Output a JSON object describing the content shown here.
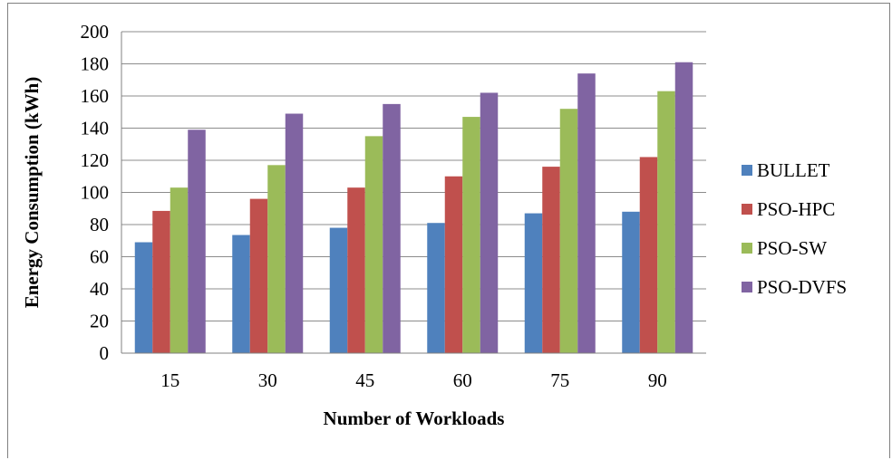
{
  "chart_data": {
    "type": "bar",
    "title": "",
    "xlabel": "Number of Workloads",
    "ylabel": "Energy Consumption  (kWh)",
    "categories": [
      "15",
      "30",
      "45",
      "60",
      "75",
      "90"
    ],
    "ylim": [
      0,
      200
    ],
    "yticks": [
      "0",
      "20",
      "40",
      "60",
      "80",
      "100",
      "120",
      "140",
      "160",
      "180",
      "200"
    ],
    "grid": true,
    "legend_position": "right",
    "series": [
      {
        "name": "BULLET",
        "color": "#4F81BD",
        "values": [
          69,
          73.5,
          78,
          81,
          87,
          88
        ]
      },
      {
        "name": "PSO-HPC",
        "color": "#C0504D",
        "values": [
          88.5,
          96,
          103,
          110,
          116,
          122
        ]
      },
      {
        "name": "PSO-SW",
        "color": "#9BBB59",
        "values": [
          103,
          117,
          135,
          147,
          152,
          163
        ]
      },
      {
        "name": "PSO-DVFS",
        "color": "#8064A2",
        "values": [
          139,
          149,
          155,
          162,
          174,
          181
        ]
      }
    ]
  }
}
